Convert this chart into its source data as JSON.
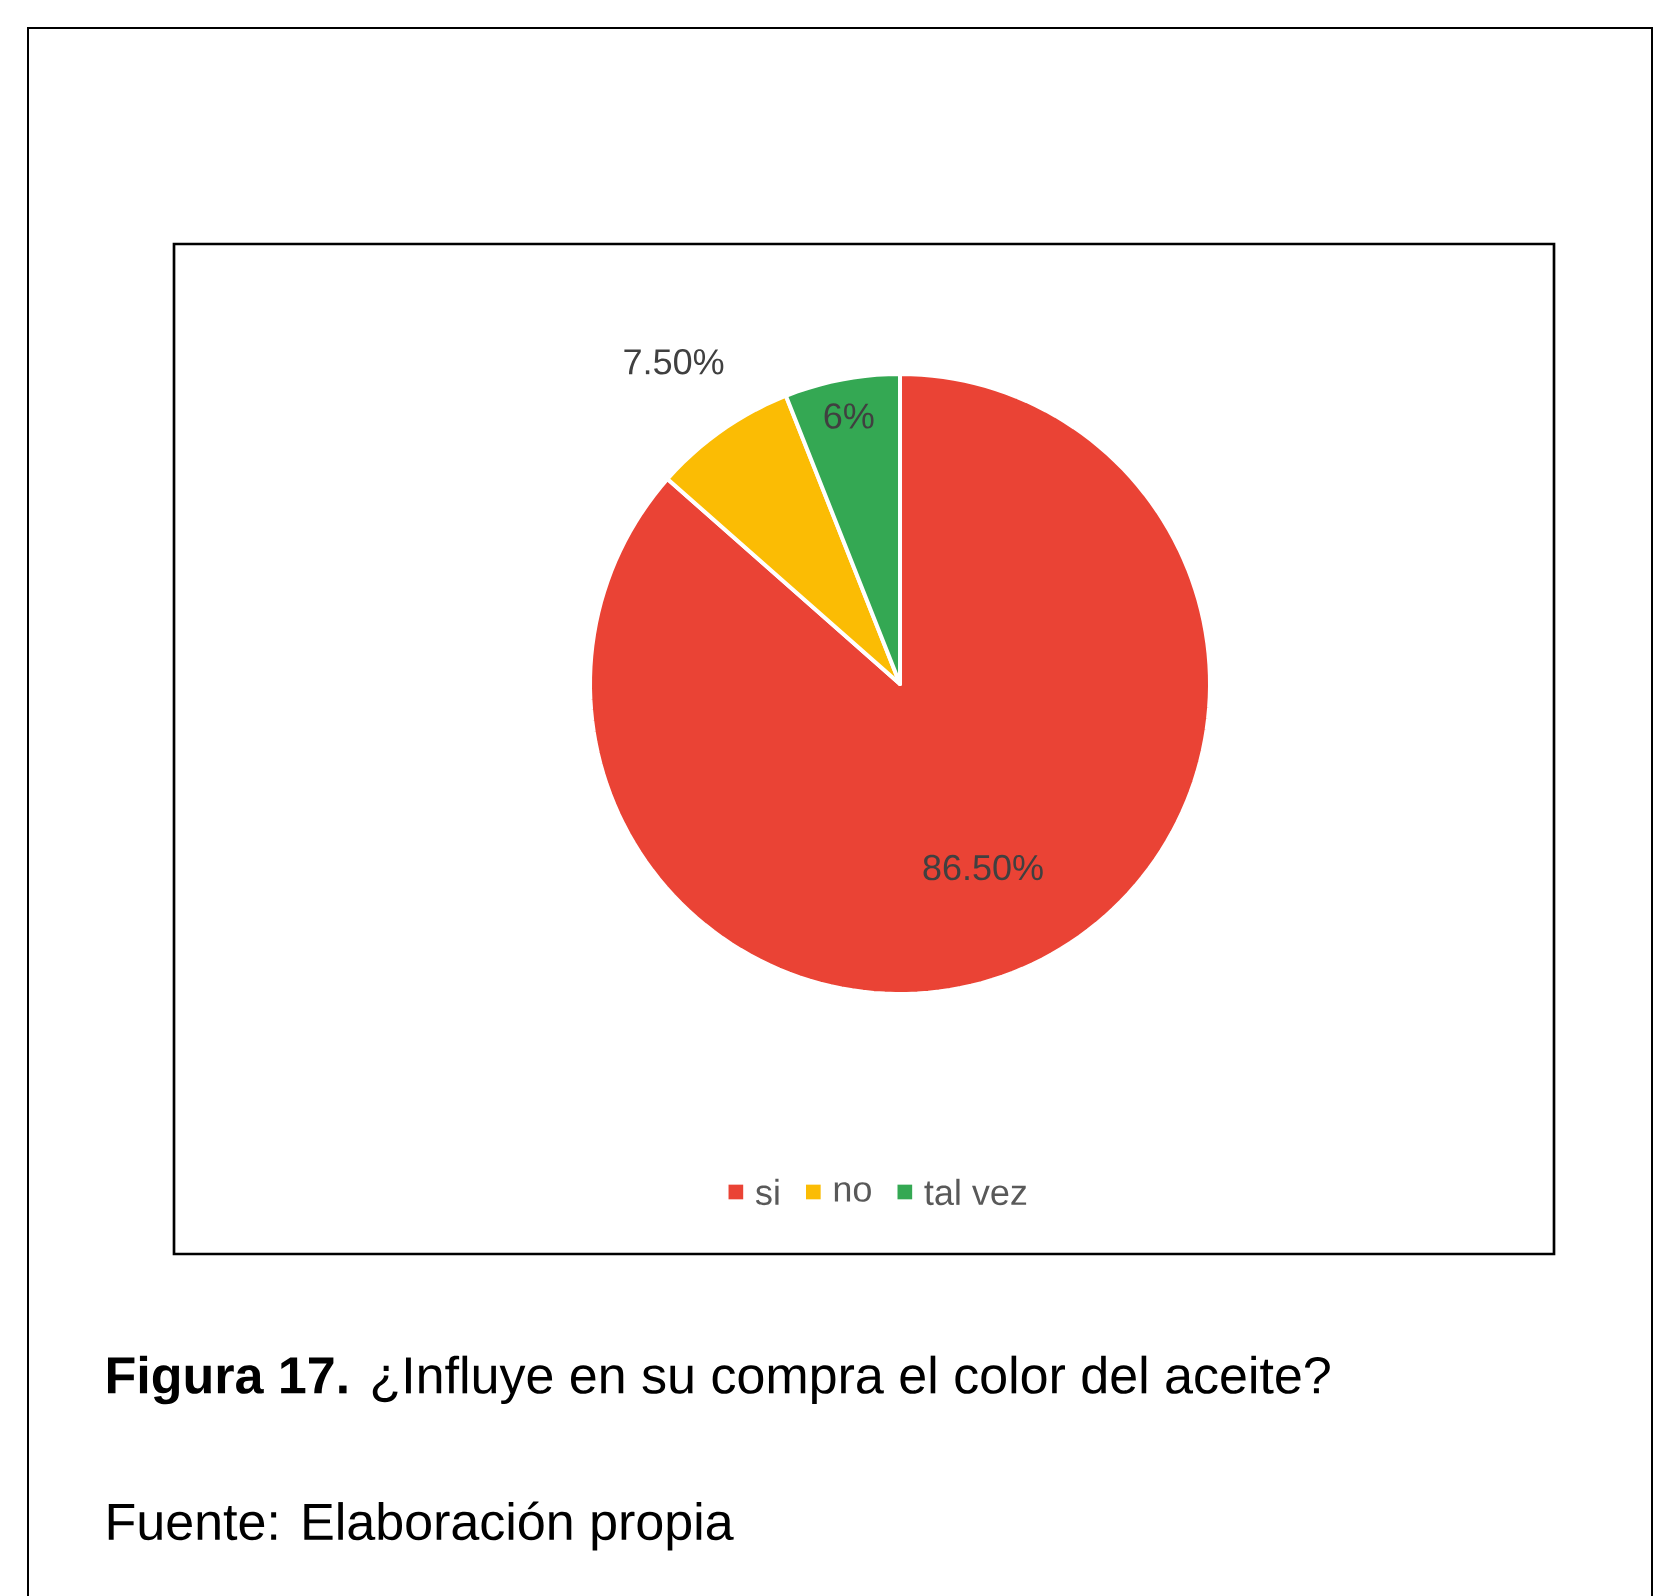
{
  "chart_data": {
    "type": "pie",
    "title": "**Figura 17.** ¿Influye en su compra el color del aceite?",
    "categories": [
      "si",
      "no",
      "tal vez"
    ],
    "values": [
      86.5,
      7.5,
      6
    ],
    "colors": [
      "#ea4335",
      "#fbbc04",
      "#34a853"
    ],
    "value_labels": [
      "86.50%",
      "7.50%",
      "6%"
    ],
    "legend": "bottom",
    "annotations": [
      "Fuente: Elaboración propia"
    ]
  }
}
